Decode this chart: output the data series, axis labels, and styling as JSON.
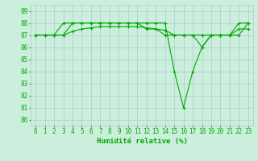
{
  "title": "",
  "xlabel": "Humidité relative (%)",
  "ylabel": "",
  "xlim": [
    -0.5,
    23.5
  ],
  "ylim": [
    79.5,
    89.5
  ],
  "yticks": [
    80,
    81,
    82,
    83,
    84,
    85,
    86,
    87,
    88,
    89
  ],
  "xticks": [
    0,
    1,
    2,
    3,
    4,
    5,
    6,
    7,
    8,
    9,
    10,
    11,
    12,
    13,
    14,
    15,
    16,
    17,
    18,
    19,
    20,
    21,
    22,
    23
  ],
  "background_color": "#cceedd",
  "grid_color": "#aacccc",
  "line_color": "#00aa00",
  "lines": [
    [
      87,
      87,
      87,
      88,
      88,
      88,
      88,
      88,
      88,
      88,
      88,
      88,
      88,
      88,
      88,
      84,
      81,
      84,
      86,
      87,
      87,
      87,
      88,
      88
    ],
    [
      87,
      87,
      87,
      87,
      88,
      88,
      88,
      88,
      88,
      88,
      88,
      88,
      87.5,
      87.5,
      87,
      87,
      87,
      87,
      86,
      87,
      87,
      87,
      87,
      88
    ],
    [
      87,
      87,
      87,
      87,
      87.3,
      87.5,
      87.6,
      87.7,
      87.7,
      87.7,
      87.7,
      87.7,
      87.6,
      87.5,
      87.4,
      87,
      87,
      87,
      87,
      87,
      87,
      87,
      87.5,
      87.5
    ]
  ],
  "marker": "+",
  "markersize": 3,
  "linewidth": 0.8,
  "tick_fontsize": 5.5,
  "xlabel_fontsize": 6.5
}
